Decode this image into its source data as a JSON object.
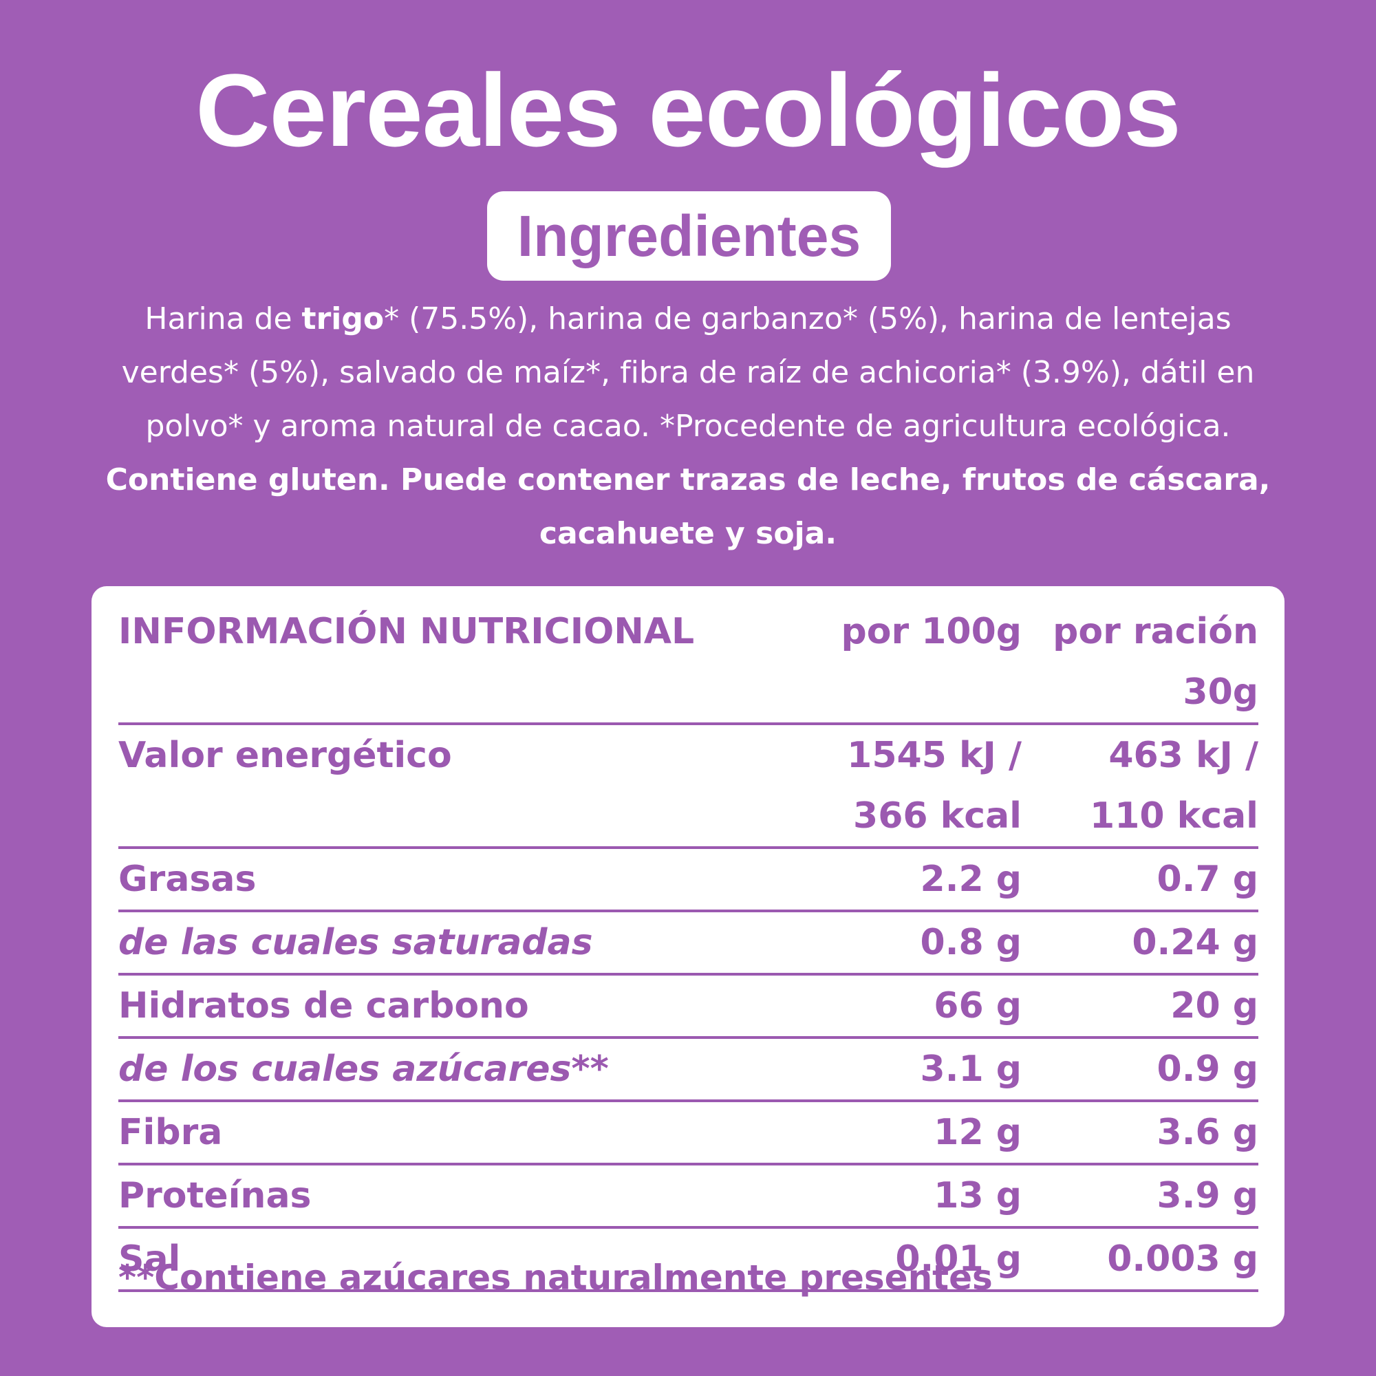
{
  "header": {
    "title": "Cereales ecológicos",
    "badge": "Ingredientes"
  },
  "ingredients": {
    "parts": [
      {
        "text": "Harina de ",
        "bold": false
      },
      {
        "text": "trigo",
        "bold": true
      },
      {
        "text": "* (75.5%), harina de garbanzo* (5%), harina de lentejas verdes* (5%), salvado de maíz*, fibra de raíz de achicoria* (3.9%), dátil en polvo* y aroma natural de cacao. *Procedente de agricultura ecológica.",
        "bold": false
      }
    ],
    "allergens": "Contiene gluten. Puede contener trazas de leche, frutos de cáscara, cacahuete y soja."
  },
  "table": {
    "header": [
      "INFORMACIÓN NUTRICIONAL",
      "por 100g",
      "por ración 30g"
    ],
    "rows": [
      {
        "label": "Valor energético",
        "per100": [
          "1545 kJ /",
          "366 kcal"
        ],
        "serving": [
          "463 kJ /",
          "110 kcal"
        ],
        "italic": false
      },
      {
        "label": "Grasas",
        "per100": [
          "2.2 g"
        ],
        "serving": [
          "0.7 g"
        ],
        "italic": false
      },
      {
        "label": "de las cuales saturadas",
        "per100": [
          "0.8 g"
        ],
        "serving": [
          "0.24 g"
        ],
        "italic": true
      },
      {
        "label": "Hidratos de carbono",
        "per100": [
          "66 g"
        ],
        "serving": [
          "20 g"
        ],
        "italic": false
      },
      {
        "label": "de los cuales azúcares**",
        "per100": [
          "3.1 g"
        ],
        "serving": [
          "0.9 g"
        ],
        "italic": true
      },
      {
        "label": "Fibra",
        "per100": [
          "12 g"
        ],
        "serving": [
          "3.6 g"
        ],
        "italic": false
      },
      {
        "label": "Proteínas",
        "per100": [
          "13 g"
        ],
        "serving": [
          "3.9 g"
        ],
        "italic": false
      },
      {
        "label": "Sal",
        "per100": [
          "0.01 g"
        ],
        "serving": [
          "0.003 g"
        ],
        "italic": false
      }
    ],
    "footnote": "**Contiene azúcares naturalmente presentes"
  }
}
